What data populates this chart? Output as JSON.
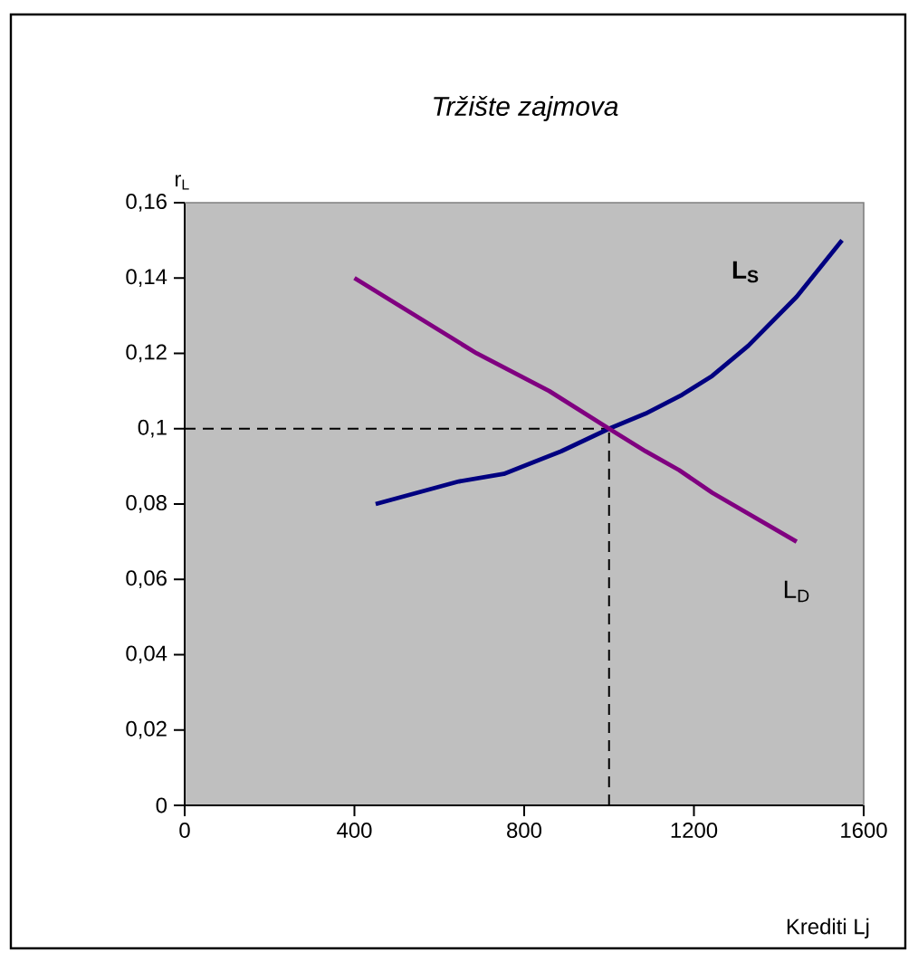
{
  "chart_data": {
    "type": "line",
    "title": "Tržište zajmova",
    "xlabel": "Krediti Lj",
    "ylabel": "r$_{L}$",
    "xlim": [
      0,
      1600
    ],
    "xticks": [
      0,
      400,
      800,
      1200,
      1600
    ],
    "ylim": [
      0,
      0.16
    ],
    "yticks": [
      0,
      {
        "value": 0.02,
        "label": "0,02"
      },
      {
        "value": 0.04,
        "label": "0,04"
      },
      {
        "value": 0.06,
        "label": "0,06"
      },
      {
        "value": 0.08,
        "label": "0,08"
      },
      {
        "value": 0.1,
        "label": "0,1"
      },
      {
        "value": 0.12,
        "label": "0,12"
      },
      {
        "value": 0.14,
        "label": "0,14"
      },
      {
        "value": 0.16,
        "label": "0,16"
      }
    ],
    "series": [
      {
        "name": "L$_{S}$",
        "color": "#000080",
        "x": [
          450,
          646,
          752,
          887,
          1000,
          1086,
          1172,
          1243,
          1328,
          1442,
          1549
        ],
        "values": [
          0.08,
          0.086,
          0.088,
          0.094,
          0.1,
          0.104,
          0.109,
          0.114,
          0.122,
          0.135,
          0.15
        ]
      },
      {
        "name": "L$_{D}$",
        "color": "#800080",
        "x": [
          400,
          688,
          859,
          1000,
          1086,
          1165,
          1243,
          1442
        ],
        "values": [
          0.14,
          0.12,
          0.11,
          0.1,
          0.094,
          0.089,
          0.083,
          0.07
        ]
      }
    ],
    "ref_lines": [
      {
        "axis": "x",
        "value": 1000,
        "color": "#000000",
        "line_style": "dashed"
      },
      {
        "axis": "y",
        "value": 0.1,
        "color": "#000000",
        "line_style": "dashed"
      }
    ]
  }
}
